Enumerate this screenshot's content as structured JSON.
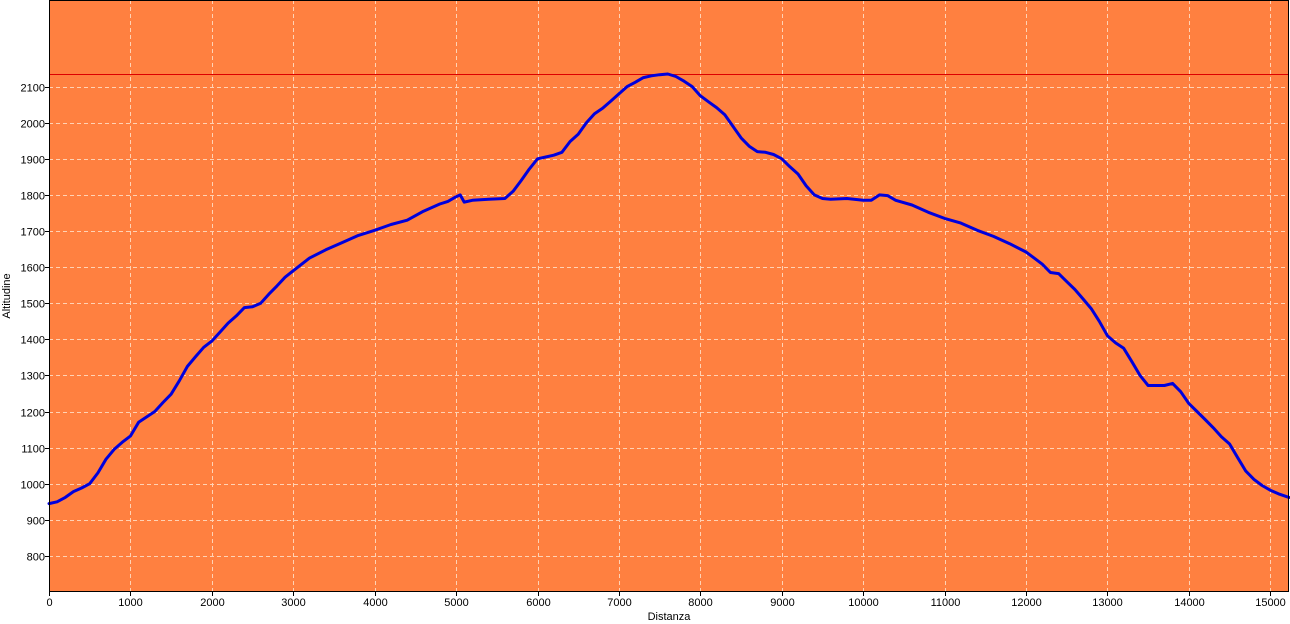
{
  "chart_data": {
    "type": "line",
    "title": "",
    "xlabel": "Distanza",
    "ylabel": "Altitudine",
    "xlim": [
      0,
      15230
    ],
    "ylim": [
      700,
      2340
    ],
    "x_ticks": [
      0,
      1000,
      2000,
      3000,
      4000,
      5000,
      6000,
      7000,
      8000,
      9000,
      10000,
      11000,
      12000,
      13000,
      14000,
      15000
    ],
    "y_ticks": [
      800,
      900,
      1000,
      1100,
      1200,
      1300,
      1400,
      1500,
      1600,
      1700,
      1800,
      1900,
      2000,
      2100
    ],
    "grid": true,
    "colors": {
      "plot_background": "#ff8040",
      "line": "#0000dd",
      "max_line": "#dd0000",
      "grid": "#ffd2b4",
      "frame": "#000000"
    },
    "reference_line": {
      "label": "",
      "y": 2135
    },
    "series": [
      {
        "name": "",
        "x": [
          0,
          100,
          200,
          300,
          400,
          500,
          600,
          700,
          800,
          900,
          1000,
          1100,
          1200,
          1300,
          1400,
          1500,
          1600,
          1700,
          1800,
          1900,
          2000,
          2100,
          2200,
          2300,
          2400,
          2500,
          2600,
          2700,
          2800,
          2900,
          3000,
          3200,
          3400,
          3600,
          3800,
          4000,
          4200,
          4400,
          4600,
          4800,
          4900,
          5000,
          5050,
          5100,
          5200,
          5400,
          5600,
          5700,
          5800,
          5900,
          6000,
          6100,
          6200,
          6300,
          6400,
          6500,
          6600,
          6700,
          6800,
          6900,
          7000,
          7100,
          7200,
          7300,
          7400,
          7500,
          7600,
          7700,
          7800,
          7900,
          8000,
          8100,
          8200,
          8300,
          8400,
          8500,
          8600,
          8700,
          8800,
          8900,
          9000,
          9100,
          9200,
          9300,
          9400,
          9500,
          9600,
          9800,
          10000,
          10100,
          10200,
          10300,
          10400,
          10600,
          10800,
          11000,
          11200,
          11400,
          11600,
          11800,
          12000,
          12100,
          12200,
          12300,
          12400,
          12500,
          12600,
          12700,
          12800,
          12900,
          13000,
          13100,
          13200,
          13300,
          13400,
          13500,
          13600,
          13700,
          13800,
          13900,
          14000,
          14100,
          14200,
          14300,
          14400,
          14500,
          14600,
          14700,
          14800,
          14900,
          15000,
          15100,
          15230
        ],
        "y": [
          945,
          950,
          962,
          978,
          988,
          1000,
          1030,
          1068,
          1095,
          1115,
          1132,
          1170,
          1185,
          1200,
          1225,
          1248,
          1285,
          1325,
          1352,
          1378,
          1395,
          1420,
          1445,
          1465,
          1488,
          1490,
          1500,
          1525,
          1548,
          1572,
          1590,
          1625,
          1648,
          1668,
          1688,
          1702,
          1718,
          1730,
          1755,
          1775,
          1782,
          1795,
          1800,
          1780,
          1785,
          1788,
          1790,
          1810,
          1840,
          1872,
          1900,
          1905,
          1910,
          1918,
          1948,
          1968,
          2000,
          2025,
          2040,
          2060,
          2080,
          2100,
          2112,
          2125,
          2130,
          2133,
          2135,
          2128,
          2115,
          2100,
          2075,
          2058,
          2042,
          2022,
          1990,
          1958,
          1935,
          1920,
          1918,
          1912,
          1900,
          1878,
          1858,
          1825,
          1800,
          1790,
          1788,
          1790,
          1785,
          1785,
          1800,
          1798,
          1785,
          1772,
          1752,
          1735,
          1722,
          1702,
          1685,
          1665,
          1642,
          1625,
          1608,
          1585,
          1582,
          1560,
          1538,
          1512,
          1485,
          1450,
          1410,
          1390,
          1375,
          1338,
          1300,
          1272,
          1272,
          1272,
          1278,
          1255,
          1222,
          1200,
          1178,
          1155,
          1130,
          1110,
          1072,
          1035,
          1012,
          995,
          982,
          972,
          962
        ]
      }
    ]
  }
}
